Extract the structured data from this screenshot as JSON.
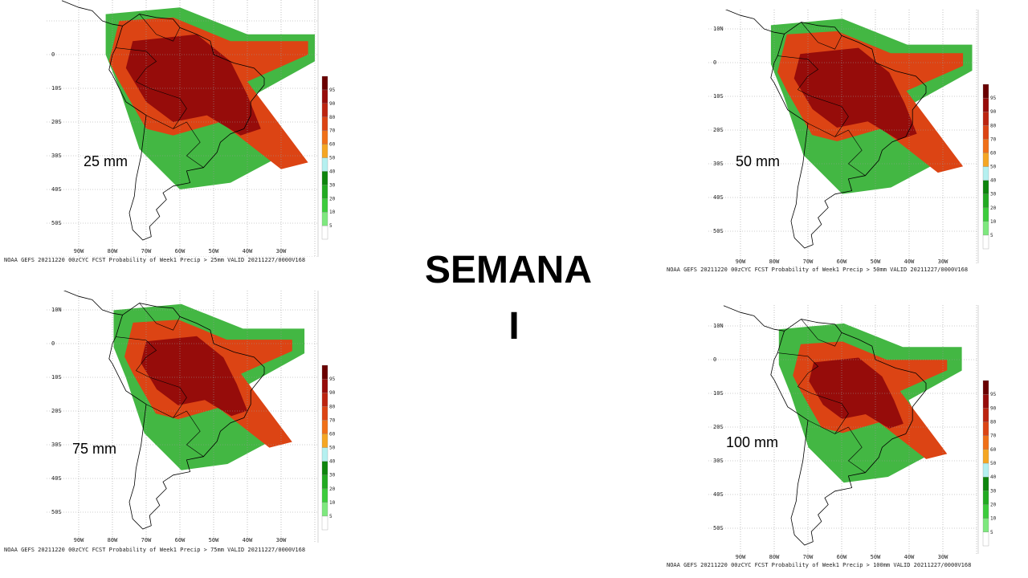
{
  "title": {
    "line1": "SEMANA",
    "line2": "I"
  },
  "colorbar": {
    "ticks": [
      "5",
      "10",
      "20",
      "30",
      "40",
      "50",
      "60",
      "70",
      "80",
      "90",
      "95"
    ],
    "colors": [
      "#ffffff",
      "#7ee87e",
      "#3ccc3c",
      "#22aa22",
      "#0d850d",
      "#b4f0f0",
      "#f5a623",
      "#f07018",
      "#dc4414",
      "#bc2410",
      "#960c0a",
      "#6a0000"
    ]
  },
  "lon_labels": [
    "90W",
    "80W",
    "70W",
    "60W",
    "50W",
    "40W",
    "30W"
  ],
  "panels": [
    {
      "label": "25 mm",
      "caption": "NOAA GEFS 20211220 00zCYC FCST Probability of Week1 Precip > 25mm  VALID 20211227/0000V168",
      "lat_labels": [
        "0",
        "10S",
        "20S",
        "30S",
        "40S",
        "50S"
      ]
    },
    {
      "label": "50 mm",
      "caption": "NOAA GEFS 20211220 00zCYC FCST Probability of Week1 Precip > 50mm  VALID 20211227/0000V168",
      "lat_labels": [
        "10N",
        "0",
        "10S",
        "20S",
        "30S",
        "40S",
        "50S"
      ]
    },
    {
      "label": "75 mm",
      "caption": "NOAA GEFS 20211220 00zCYC FCST Probability of Week1 Precip > 75mm  VALID 20211227/0000V168",
      "lat_labels": [
        "10N",
        "0",
        "10S",
        "20S",
        "30S",
        "40S",
        "50S"
      ]
    },
    {
      "label": "100 mm",
      "caption": "NOAA GEFS 20211220 00zCYC FCST Probability of Week1 Precip > 100mm  VALID 20211227/0000V168",
      "lat_labels": [
        "10N",
        "0",
        "10S",
        "20S",
        "30S",
        "40S",
        "50S"
      ]
    }
  ]
}
